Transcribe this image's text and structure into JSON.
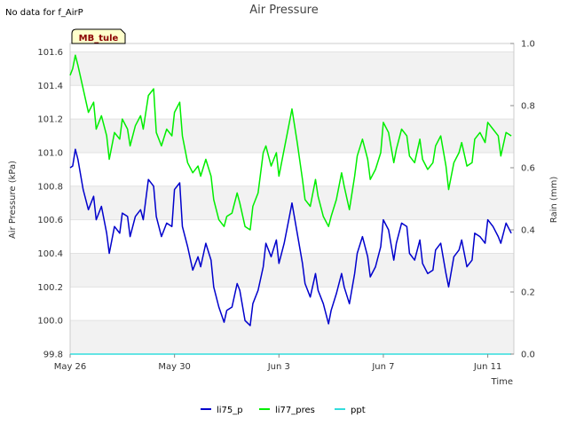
{
  "no_data_note": "No data for f_AirP",
  "chart_data": {
    "type": "line",
    "title": "Air Pressure",
    "xlabel": "Time",
    "ylabel": "Air Pressure (kPa)",
    "y2label": "Rain (mm)",
    "station_badge": "MB_tule",
    "x_domain_days": [
      0,
      17
    ],
    "ylim": [
      99.8,
      101.65
    ],
    "y2lim": [
      0.0,
      1.0
    ],
    "x_ticks": [
      {
        "day": 0,
        "label": "May 26"
      },
      {
        "day": 4,
        "label": "May 30"
      },
      {
        "day": 8,
        "label": "Jun 3"
      },
      {
        "day": 12,
        "label": "Jun 7"
      },
      {
        "day": 16,
        "label": "Jun 11"
      }
    ],
    "y_ticks": [
      "99.8",
      "100.0",
      "100.2",
      "100.4",
      "100.6",
      "100.8",
      "101.0",
      "101.2",
      "101.4",
      "101.6"
    ],
    "y2_ticks": [
      "0.0",
      "0.2",
      "0.4",
      "0.6",
      "0.8",
      "1.0"
    ],
    "bands": [
      [
        99.8,
        100.0
      ],
      [
        100.2,
        100.4
      ],
      [
        100.6,
        100.8
      ],
      [
        101.0,
        101.2
      ],
      [
        101.4,
        101.6
      ]
    ],
    "series": [
      {
        "name": "li75_p",
        "color": "#0000cc",
        "axis": "left",
        "x": [
          0.0,
          0.1,
          0.2,
          0.3,
          0.5,
          0.7,
          0.9,
          1.0,
          1.2,
          1.4,
          1.5,
          1.7,
          1.9,
          2.0,
          2.2,
          2.3,
          2.5,
          2.7,
          2.8,
          3.0,
          3.2,
          3.3,
          3.5,
          3.7,
          3.9,
          4.0,
          4.2,
          4.3,
          4.5,
          4.7,
          4.9,
          5.0,
          5.2,
          5.4,
          5.5,
          5.7,
          5.9,
          6.0,
          6.2,
          6.4,
          6.5,
          6.7,
          6.9,
          7.0,
          7.2,
          7.4,
          7.5,
          7.7,
          7.9,
          8.0,
          8.2,
          8.4,
          8.5,
          8.7,
          8.9,
          9.0,
          9.2,
          9.4,
          9.5,
          9.7,
          9.9,
          10.0,
          10.2,
          10.4,
          10.5,
          10.7,
          10.9,
          11.0,
          11.2,
          11.4,
          11.5,
          11.7,
          11.9,
          12.0,
          12.2,
          12.4,
          12.5,
          12.7,
          12.9,
          13.0,
          13.2,
          13.4,
          13.5,
          13.7,
          13.9,
          14.0,
          14.2,
          14.4,
          14.5,
          14.7,
          14.9,
          15.0,
          15.2,
          15.4,
          15.5,
          15.7,
          15.9,
          16.0,
          16.2,
          16.4,
          16.5,
          16.7,
          16.9
        ],
        "values": [
          100.91,
          100.92,
          101.02,
          100.96,
          100.78,
          100.66,
          100.74,
          100.6,
          100.68,
          100.52,
          100.4,
          100.56,
          100.52,
          100.64,
          100.62,
          100.5,
          100.62,
          100.66,
          100.6,
          100.84,
          100.8,
          100.62,
          100.5,
          100.58,
          100.56,
          100.78,
          100.82,
          100.56,
          100.44,
          100.3,
          100.38,
          100.32,
          100.46,
          100.36,
          100.2,
          100.08,
          99.99,
          100.06,
          100.08,
          100.22,
          100.18,
          100.0,
          99.97,
          100.1,
          100.18,
          100.32,
          100.46,
          100.38,
          100.48,
          100.34,
          100.46,
          100.62,
          100.7,
          100.52,
          100.34,
          100.22,
          100.14,
          100.28,
          100.18,
          100.1,
          99.98,
          100.06,
          100.16,
          100.28,
          100.2,
          100.1,
          100.28,
          100.4,
          100.5,
          100.38,
          100.26,
          100.32,
          100.44,
          100.6,
          100.54,
          100.36,
          100.46,
          100.58,
          100.56,
          100.4,
          100.36,
          100.48,
          100.34,
          100.28,
          100.3,
          100.42,
          100.46,
          100.28,
          100.2,
          100.38,
          100.42,
          100.48,
          100.32,
          100.36,
          100.52,
          100.5,
          100.46,
          100.6,
          100.56,
          100.5,
          100.46,
          100.58,
          100.52
        ]
      },
      {
        "name": "li77_pres",
        "color": "#00ee00",
        "axis": "left",
        "x": [
          0.0,
          0.1,
          0.2,
          0.3,
          0.5,
          0.7,
          0.9,
          1.0,
          1.2,
          1.4,
          1.5,
          1.7,
          1.9,
          2.0,
          2.2,
          2.3,
          2.5,
          2.7,
          2.8,
          3.0,
          3.2,
          3.3,
          3.5,
          3.7,
          3.9,
          4.0,
          4.2,
          4.3,
          4.5,
          4.7,
          4.9,
          5.0,
          5.2,
          5.4,
          5.5,
          5.7,
          5.9,
          6.0,
          6.2,
          6.4,
          6.5,
          6.7,
          6.9,
          7.0,
          7.2,
          7.4,
          7.5,
          7.7,
          7.9,
          8.0,
          8.2,
          8.4,
          8.5,
          8.7,
          8.9,
          9.0,
          9.2,
          9.4,
          9.5,
          9.7,
          9.9,
          10.0,
          10.2,
          10.4,
          10.5,
          10.7,
          10.9,
          11.0,
          11.2,
          11.4,
          11.5,
          11.7,
          11.9,
          12.0,
          12.2,
          12.4,
          12.5,
          12.7,
          12.9,
          13.0,
          13.2,
          13.4,
          13.5,
          13.7,
          13.9,
          14.0,
          14.2,
          14.4,
          14.5,
          14.7,
          14.9,
          15.0,
          15.2,
          15.4,
          15.5,
          15.7,
          15.9,
          16.0,
          16.2,
          16.4,
          16.5,
          16.7,
          16.9
        ],
        "values": [
          101.46,
          101.5,
          101.58,
          101.52,
          101.38,
          101.24,
          101.3,
          101.14,
          101.22,
          101.1,
          100.96,
          101.12,
          101.08,
          101.2,
          101.14,
          101.04,
          101.16,
          101.22,
          101.14,
          101.34,
          101.38,
          101.12,
          101.04,
          101.14,
          101.1,
          101.24,
          101.3,
          101.1,
          100.94,
          100.88,
          100.92,
          100.86,
          100.96,
          100.86,
          100.72,
          100.6,
          100.56,
          100.62,
          100.64,
          100.76,
          100.7,
          100.56,
          100.54,
          100.68,
          100.76,
          101.0,
          101.04,
          100.92,
          101.0,
          100.86,
          101.02,
          101.18,
          101.26,
          101.06,
          100.84,
          100.72,
          100.68,
          100.84,
          100.74,
          100.62,
          100.56,
          100.62,
          100.72,
          100.88,
          100.8,
          100.66,
          100.86,
          100.98,
          101.08,
          100.96,
          100.84,
          100.9,
          101.0,
          101.18,
          101.12,
          100.94,
          101.02,
          101.14,
          101.1,
          100.98,
          100.94,
          101.08,
          100.96,
          100.9,
          100.94,
          101.04,
          101.1,
          100.92,
          100.78,
          100.94,
          101.0,
          101.06,
          100.92,
          100.94,
          101.08,
          101.12,
          101.06,
          101.18,
          101.14,
          101.1,
          100.98,
          101.12,
          101.1
        ]
      },
      {
        "name": "ppt",
        "color": "#33dddd",
        "axis": "right",
        "x": [
          0,
          16.9
        ],
        "values": [
          0.0,
          0.0
        ]
      }
    ],
    "legend_position": "bottom-center"
  }
}
